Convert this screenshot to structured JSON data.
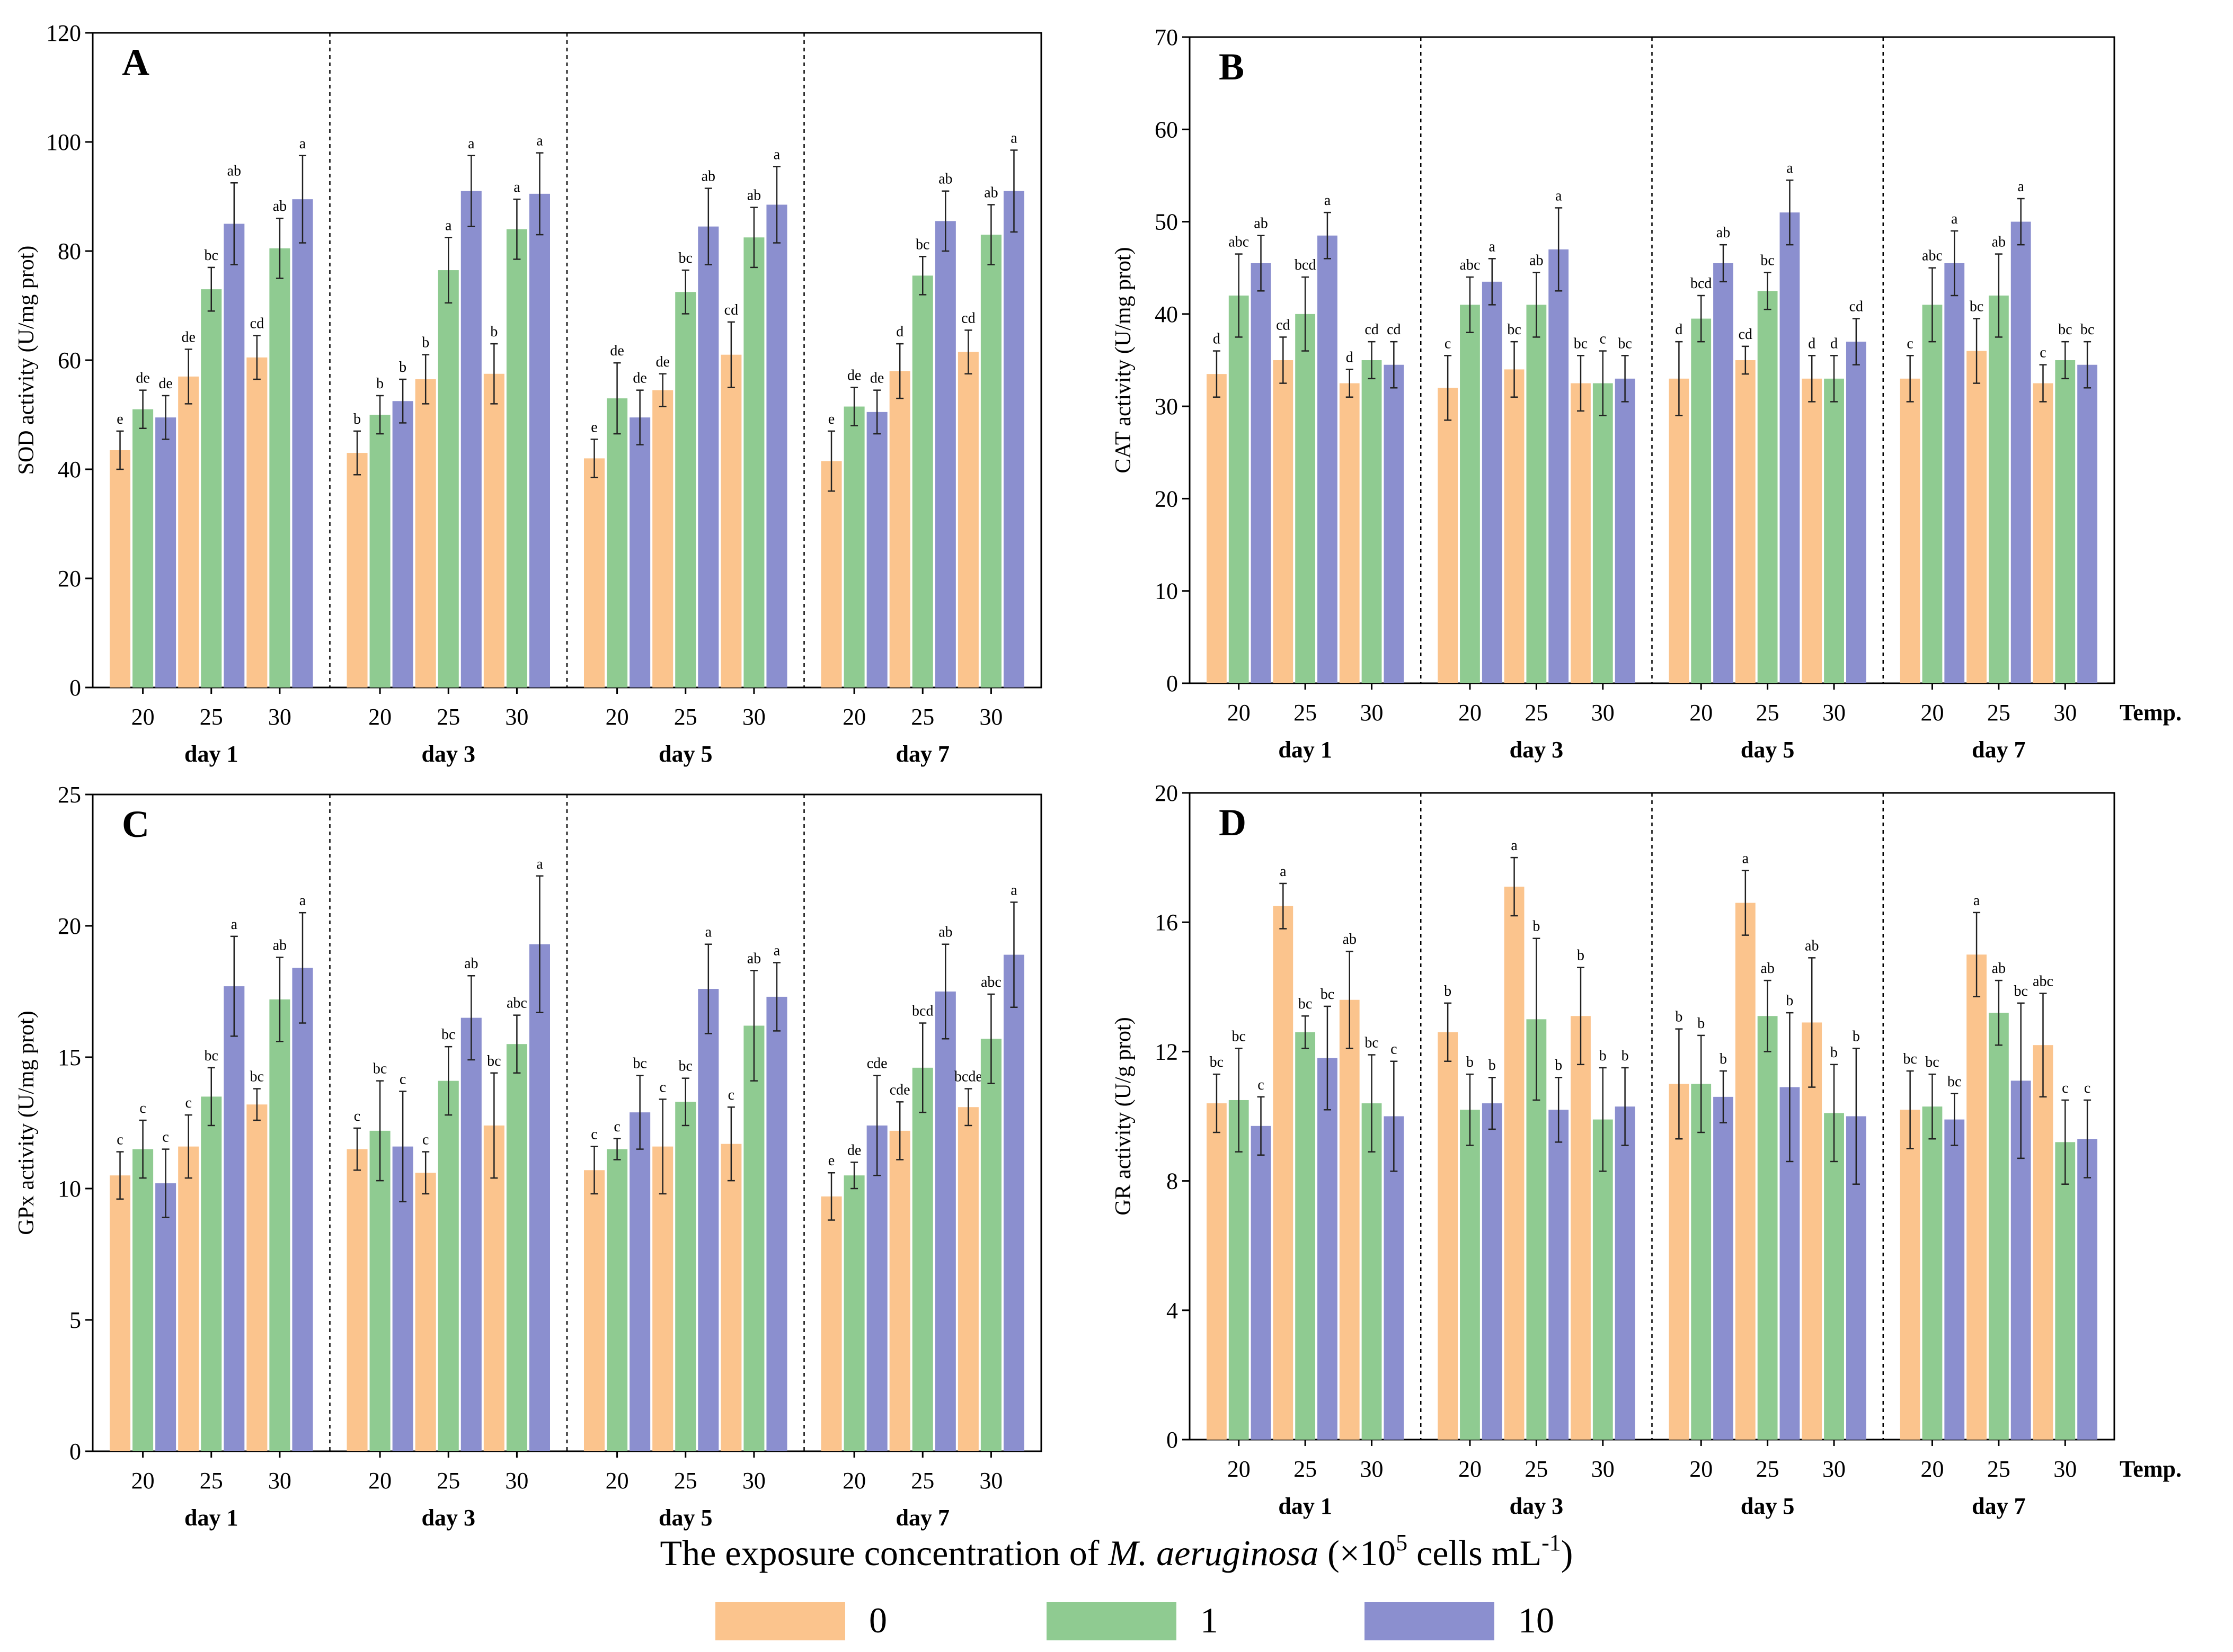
{
  "colors": {
    "c0": "#fbc48d",
    "c1": "#8fcb91",
    "c10": "#8b8fcf"
  },
  "figure": {
    "xlabel_prefix": "The exposure concentration of ",
    "xlabel_species": "M. aeruginosa",
    "xlabel_mid": " (×10",
    "xlabel_exp": "5",
    "xlabel_units": " cells mL",
    "xlabel_unit_exp": "-1",
    "xlabel_end": ")",
    "legend": [
      "0",
      "1",
      "10"
    ],
    "temp_label": "Temp."
  },
  "chart_data": [
    {
      "panel": "A",
      "type": "bar",
      "ylabel": "SOD activity (U/mg prot)",
      "ylim": [
        0,
        120
      ],
      "yticks": [
        0,
        20,
        40,
        60,
        80,
        100,
        120
      ],
      "groups": [
        "day 1",
        "day 3",
        "day 5",
        "day 7"
      ],
      "temps": [
        "20",
        "25",
        "30"
      ],
      "series_names": [
        "0",
        "1",
        "10"
      ],
      "values": [
        [
          [
            43.5,
            51,
            49.5
          ],
          [
            57,
            73,
            85
          ],
          [
            60.5,
            80.5,
            89.5
          ]
        ],
        [
          [
            43,
            50,
            52.5
          ],
          [
            56.5,
            76.5,
            91
          ],
          [
            57.5,
            84,
            90.5
          ]
        ],
        [
          [
            42,
            53,
            49.5
          ],
          [
            54.5,
            72.5,
            84.5
          ],
          [
            61,
            82.5,
            88.5
          ]
        ],
        [
          [
            41.5,
            51.5,
            50.5
          ],
          [
            58,
            75.5,
            85.5
          ],
          [
            61.5,
            83,
            91
          ]
        ]
      ],
      "errors": [
        [
          [
            3.5,
            3.5,
            4
          ],
          [
            5,
            4,
            7.5
          ],
          [
            4,
            5.5,
            8
          ]
        ],
        [
          [
            4,
            3.5,
            4
          ],
          [
            4.5,
            6,
            6.5
          ],
          [
            5.5,
            5.5,
            7.5
          ]
        ],
        [
          [
            3.5,
            6.5,
            5
          ],
          [
            3,
            4,
            7
          ],
          [
            6,
            5.5,
            7
          ]
        ],
        [
          [
            5.5,
            3.5,
            4
          ],
          [
            5,
            3.5,
            5.5
          ],
          [
            4,
            5.5,
            7.5
          ]
        ]
      ],
      "letters": [
        [
          [
            "e",
            "de",
            "de"
          ],
          [
            "de",
            "bc",
            "ab"
          ],
          [
            "cd",
            "ab",
            "a"
          ]
        ],
        [
          [
            "b",
            "b",
            "b"
          ],
          [
            "b",
            "a",
            "a"
          ],
          [
            "b",
            "a",
            "a"
          ]
        ],
        [
          [
            "e",
            "de",
            "de"
          ],
          [
            "de",
            "bc",
            "ab"
          ],
          [
            "cd",
            "ab",
            "a"
          ]
        ],
        [
          [
            "e",
            "de",
            "de"
          ],
          [
            "d",
            "bc",
            "ab"
          ],
          [
            "cd",
            "ab",
            "a"
          ]
        ]
      ]
    },
    {
      "panel": "B",
      "type": "bar",
      "ylabel": "CAT activity (U/mg prot)",
      "ylim": [
        0,
        70
      ],
      "yticks": [
        0,
        10,
        20,
        30,
        40,
        50,
        60,
        70
      ],
      "groups": [
        "day 1",
        "day 3",
        "day 5",
        "day 7"
      ],
      "temps": [
        "20",
        "25",
        "30"
      ],
      "series_names": [
        "0",
        "1",
        "10"
      ],
      "values": [
        [
          [
            33.5,
            42,
            45.5
          ],
          [
            35,
            40,
            48.5
          ],
          [
            32.5,
            35,
            34.5
          ]
        ],
        [
          [
            32,
            41,
            43.5
          ],
          [
            34,
            41,
            47
          ],
          [
            32.5,
            32.5,
            33
          ]
        ],
        [
          [
            33,
            39.5,
            45.5
          ],
          [
            35,
            42.5,
            51
          ],
          [
            33,
            33,
            37
          ]
        ],
        [
          [
            33,
            41,
            45.5
          ],
          [
            36,
            42,
            50
          ],
          [
            32.5,
            35,
            34.5
          ]
        ]
      ],
      "errors": [
        [
          [
            2.5,
            4.5,
            3
          ],
          [
            2.5,
            4,
            2.5
          ],
          [
            1.5,
            2,
            2.5
          ]
        ],
        [
          [
            3.5,
            3,
            2.5
          ],
          [
            3,
            3.5,
            4.5
          ],
          [
            3,
            3.5,
            2.5
          ]
        ],
        [
          [
            4,
            2.5,
            2
          ],
          [
            1.5,
            2,
            3.5
          ],
          [
            2.5,
            2.5,
            2.5
          ]
        ],
        [
          [
            2.5,
            4,
            3.5
          ],
          [
            3.5,
            4.5,
            2.5
          ],
          [
            2,
            2,
            2.5
          ]
        ]
      ],
      "letters": [
        [
          [
            "d",
            "abc",
            "ab"
          ],
          [
            "cd",
            "bcd",
            "a"
          ],
          [
            "d",
            "cd",
            "cd"
          ]
        ],
        [
          [
            "c",
            "abc",
            "a"
          ],
          [
            "bc",
            "ab",
            "a"
          ],
          [
            "bc",
            "c",
            "bc"
          ]
        ],
        [
          [
            "d",
            "bcd",
            "ab"
          ],
          [
            "cd",
            "bc",
            "a"
          ],
          [
            "d",
            "d",
            "cd"
          ]
        ],
        [
          [
            "c",
            "abc",
            "a"
          ],
          [
            "bc",
            "ab",
            "a"
          ],
          [
            "c",
            "bc",
            "bc"
          ]
        ]
      ]
    },
    {
      "panel": "C",
      "type": "bar",
      "ylabel": "GPx activity (U/mg prot)",
      "ylim": [
        0,
        25
      ],
      "yticks": [
        0,
        5,
        10,
        15,
        20,
        25
      ],
      "groups": [
        "day 1",
        "day 3",
        "day 5",
        "day 7"
      ],
      "temps": [
        "20",
        "25",
        "30"
      ],
      "series_names": [
        "0",
        "1",
        "10"
      ],
      "values": [
        [
          [
            10.5,
            11.5,
            10.2
          ],
          [
            11.6,
            13.5,
            17.7
          ],
          [
            13.2,
            17.2,
            18.4
          ]
        ],
        [
          [
            11.5,
            12.2,
            11.6
          ],
          [
            10.6,
            14.1,
            16.5
          ],
          [
            12.4,
            15.5,
            19.3
          ]
        ],
        [
          [
            10.7,
            11.5,
            12.9
          ],
          [
            11.6,
            13.3,
            17.6
          ],
          [
            11.7,
            16.2,
            17.3
          ]
        ],
        [
          [
            9.7,
            10.5,
            12.4
          ],
          [
            12.2,
            14.6,
            17.5
          ],
          [
            13.1,
            15.7,
            18.9
          ]
        ]
      ],
      "errors": [
        [
          [
            0.9,
            1.1,
            1.3
          ],
          [
            1.2,
            1.1,
            1.9
          ],
          [
            0.6,
            1.6,
            2.1
          ]
        ],
        [
          [
            0.8,
            1.9,
            2.1
          ],
          [
            0.8,
            1.3,
            1.6
          ],
          [
            2,
            1.1,
            2.6
          ]
        ],
        [
          [
            0.9,
            0.4,
            1.4
          ],
          [
            1.8,
            0.9,
            1.7
          ],
          [
            1.4,
            2.1,
            1.3
          ]
        ],
        [
          [
            0.9,
            0.5,
            1.9
          ],
          [
            1.1,
            1.7,
            1.8
          ],
          [
            0.7,
            1.7,
            2
          ]
        ]
      ],
      "letters": [
        [
          [
            "c",
            "c",
            "c"
          ],
          [
            "c",
            "bc",
            "a"
          ],
          [
            "bc",
            "ab",
            "a"
          ]
        ],
        [
          [
            "c",
            "bc",
            "c"
          ],
          [
            "c",
            "bc",
            "ab"
          ],
          [
            "bc",
            "abc",
            "a"
          ]
        ],
        [
          [
            "c",
            "c",
            "bc"
          ],
          [
            "c",
            "bc",
            "a"
          ],
          [
            "c",
            "ab",
            "a"
          ]
        ],
        [
          [
            "e",
            "de",
            "cde"
          ],
          [
            "cde",
            "bcd",
            "ab"
          ],
          [
            "bcde",
            "abc",
            "a"
          ]
        ]
      ]
    },
    {
      "panel": "D",
      "type": "bar",
      "ylabel": "GR activity (U/g prot)",
      "ylim": [
        0,
        20
      ],
      "yticks": [
        0,
        4,
        8,
        12,
        16,
        20
      ],
      "groups": [
        "day 1",
        "day 3",
        "day 5",
        "day 7"
      ],
      "temps": [
        "20",
        "25",
        "30"
      ],
      "series_names": [
        "0",
        "1",
        "10"
      ],
      "values": [
        [
          [
            10.4,
            10.5,
            9.7
          ],
          [
            16.5,
            12.6,
            11.8
          ],
          [
            13.6,
            10.4,
            10
          ]
        ],
        [
          [
            12.6,
            10.2,
            10.4
          ],
          [
            17.1,
            13,
            10.2
          ],
          [
            13.1,
            9.9,
            10.3
          ]
        ],
        [
          [
            11,
            11,
            10.6
          ],
          [
            16.6,
            13.1,
            10.9
          ],
          [
            12.9,
            10.1,
            10
          ]
        ],
        [
          [
            10.2,
            10.3,
            9.9
          ],
          [
            15,
            13.2,
            11.1
          ],
          [
            12.2,
            9.2,
            9.3
          ]
        ]
      ],
      "errors": [
        [
          [
            0.9,
            1.6,
            0.9
          ],
          [
            0.7,
            0.5,
            1.6
          ],
          [
            1.5,
            1.5,
            1.7
          ]
        ],
        [
          [
            0.9,
            1.1,
            0.8
          ],
          [
            0.9,
            2.5,
            1
          ],
          [
            1.5,
            1.6,
            1.2
          ]
        ],
        [
          [
            1.7,
            1.5,
            0.8
          ],
          [
            1,
            1.1,
            2.3
          ],
          [
            2,
            1.5,
            2.1
          ]
        ],
        [
          [
            1.2,
            1,
            0.8
          ],
          [
            1.3,
            1,
            2.4
          ],
          [
            1.6,
            1.3,
            1.2
          ]
        ]
      ],
      "letters": [
        [
          [
            "bc",
            "bc",
            "c"
          ],
          [
            "a",
            "bc",
            "bc"
          ],
          [
            "ab",
            "bc",
            "c"
          ]
        ],
        [
          [
            "b",
            "b",
            "b"
          ],
          [
            "a",
            "b",
            "b"
          ],
          [
            "b",
            "b",
            "b"
          ]
        ],
        [
          [
            "b",
            "b",
            "b"
          ],
          [
            "a",
            "ab",
            "b"
          ],
          [
            "ab",
            "b",
            "b"
          ]
        ],
        [
          [
            "bc",
            "bc",
            "bc"
          ],
          [
            "a",
            "ab",
            "bc"
          ],
          [
            "abc",
            "c",
            "c"
          ]
        ]
      ]
    }
  ]
}
